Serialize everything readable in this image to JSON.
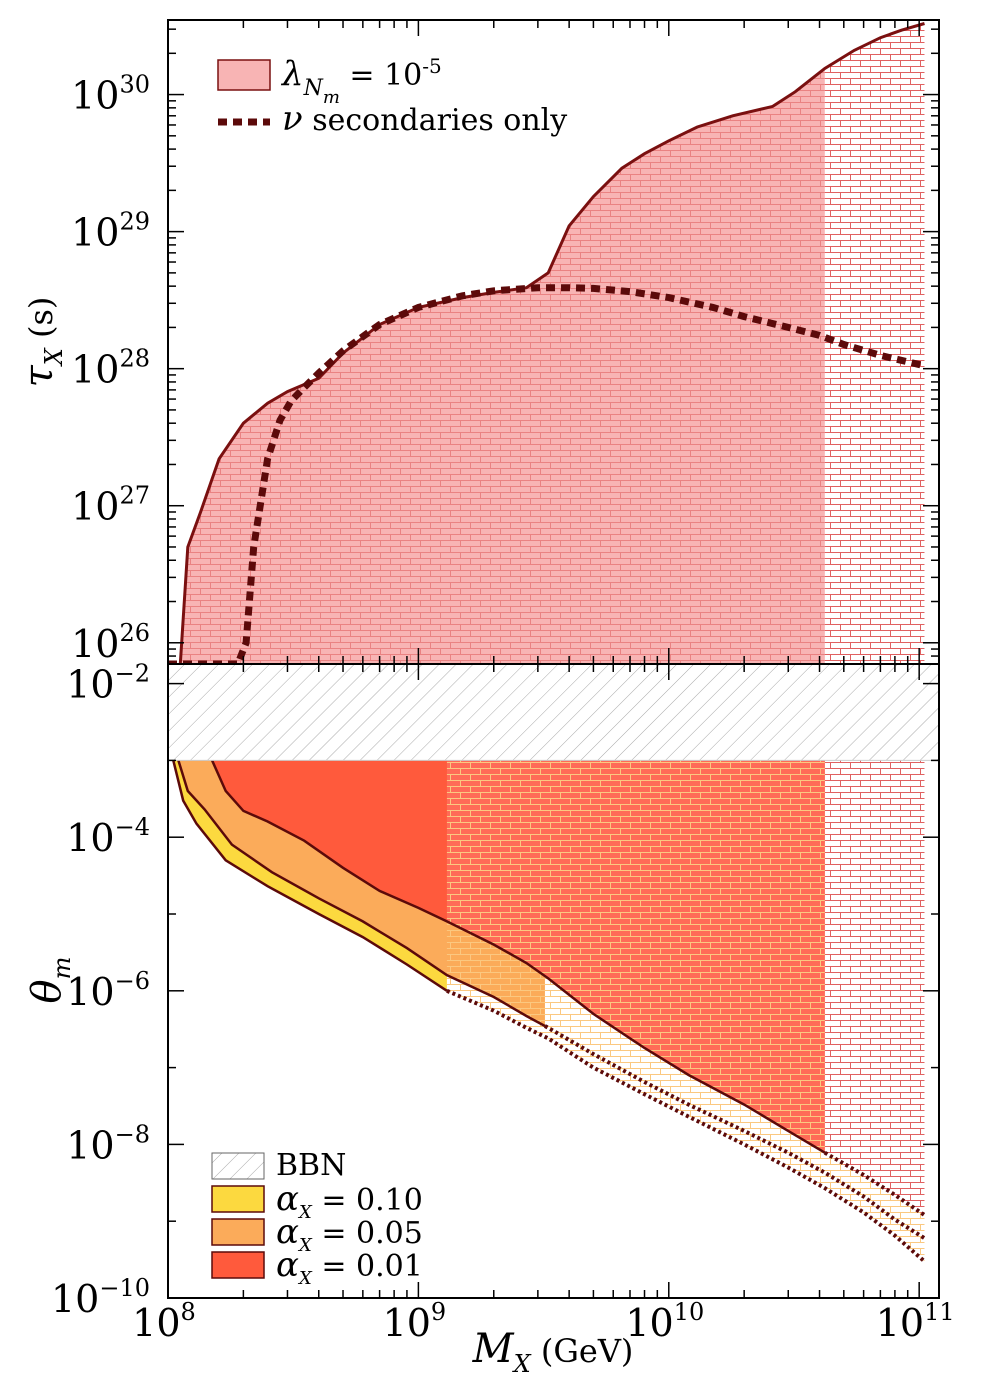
{
  "chart_data": [
    {
      "panel": "top",
      "type": "area",
      "xscale": "log",
      "yscale": "log",
      "xlim": [
        100000000.0,
        120000000000.0
      ],
      "ylim": [
        7e+25,
        3.5e+30
      ],
      "ylabel": {
        "symbol": "τ",
        "subscript": "X",
        "unit": "(s)"
      },
      "ytick_labels": [
        "10^26",
        "10^27",
        "10^28",
        "10^29",
        "10^30"
      ],
      "colors": {
        "region_fill": "#f8b4b4",
        "region_edge": "#7a1010",
        "dotted_line": "#5c0a0a",
        "hatch": "#e06060"
      },
      "hatched_extrapolation_from_x": 42000000000.0,
      "legend": [
        {
          "label_prefix": "λ",
          "label_sub": "N",
          "label_subsub": "m",
          "label_suffix": "= 10",
          "label_sup": "-5",
          "style": "filled-box"
        },
        {
          "label": "ν secondaries only",
          "style": "dotted-line"
        }
      ],
      "series": [
        {
          "name": "λ_Nm = 10^-5",
          "kind": "excluded-region-boundary",
          "x": [
            112000000.0,
            120000000.0,
            135000000.0,
            160000000.0,
            200000000.0,
            250000000.0,
            300000000.0,
            400000000.0,
            500000000.0,
            700000000.0,
            1000000000.0,
            1500000000.0,
            2000000000.0,
            2700000000.0,
            3300000000.0,
            4000000000.0,
            5000000000.0,
            6500000000.0,
            8000000000.0,
            10000000000.0,
            13000000000.0,
            18000000000.0,
            26000000000.0,
            32000000000.0,
            42000000000.0,
            55000000000.0,
            70000000000.0,
            85000000000.0,
            105000000000.0
          ],
          "y": [
            7e+25,
            5e+26,
            9e+26,
            2.2e+27,
            4e+27,
            5.6e+27,
            6.8e+27,
            8.5e+27,
            1.3e+28,
            2.1e+28,
            2.8e+28,
            3.3e+28,
            3.6e+28,
            3.9e+28,
            5e+28,
            1.1e+29,
            1.8e+29,
            2.9e+29,
            3.7e+29,
            4.6e+29,
            5.8e+29,
            7e+29,
            8.2e+29,
            1.05e+30,
            1.55e+30,
            2.1e+30,
            2.6e+30,
            2.95e+30,
            3.3e+30
          ]
        },
        {
          "name": "ν secondaries only",
          "kind": "dotted-line",
          "x": [
            100000000.0,
            150000000.0,
            190000000.0,
            205000000.0,
            220000000.0,
            250000000.0,
            280000000.0,
            310000000.0,
            350000000.0,
            400000000.0,
            500000000.0,
            700000000.0,
            1000000000.0,
            1500000000.0,
            2000000000.0,
            3000000000.0,
            4000000000.0,
            5000000000.0,
            7000000000.0,
            10000000000.0,
            15000000000.0,
            20000000000.0,
            30000000000.0,
            40000000000.0,
            50000000000.0,
            70000000000.0,
            105000000000.0
          ],
          "y": [
            7e+25,
            7e+25,
            7e+25,
            1e+26,
            5e+26,
            2.2e+27,
            4.2e+27,
            5.8e+27,
            7.3e+27,
            9.3e+27,
            1.35e+28,
            2.1e+28,
            2.8e+28,
            3.4e+28,
            3.7e+28,
            3.9e+28,
            3.9e+28,
            3.85e+28,
            3.65e+28,
            3.3e+28,
            2.8e+28,
            2.4e+28,
            2e+28,
            1.75e+28,
            1.5e+28,
            1.25e+28,
            1.05e+28
          ]
        }
      ]
    },
    {
      "panel": "bottom",
      "type": "area",
      "xscale": "log",
      "yscale": "log",
      "xlim": [
        100000000.0,
        120000000000.0
      ],
      "ylim": [
        1e-10,
        0.018
      ],
      "xlabel": {
        "symbol": "M",
        "subscript": "X",
        "unit": "(GeV)"
      },
      "ylabel": {
        "symbol": "θ",
        "subscript": "m"
      },
      "xtick_labels": [
        "10^8",
        "10^9",
        "10^10",
        "10^11"
      ],
      "ytick_labels": [
        "10^-10",
        "10^-8",
        "10^-6",
        "10^-4",
        "10^-2"
      ],
      "bbn_excluded_above": 0.001,
      "colors": {
        "bbn_hatch": "#aaaaaa",
        "alpha_0.10": "#fcd93f",
        "alpha_0.05": "#fbab5a",
        "alpha_0.01": "#ff5a3c",
        "alpha_0.01_light": "#ff6f5c",
        "edge": "#5c0a0a",
        "hatch_light": "#fbc880",
        "hatch_red": "#e06060"
      },
      "region_boundaries_x": [
        1300000000.0,
        3200000000.0,
        42000000000.0,
        105000000000.0
      ],
      "legend": [
        {
          "label": "BBN",
          "style": "hatched-box"
        },
        {
          "label_prefix": "α",
          "label_sub": "X",
          "label_suffix": "= 0.10",
          "style": "filled-box",
          "color": "#fcd93f"
        },
        {
          "label_prefix": "α",
          "label_sub": "X",
          "label_suffix": "= 0.05",
          "style": "filled-box",
          "color": "#fbab5a"
        },
        {
          "label_prefix": "α",
          "label_sub": "X",
          "label_suffix": "= 0.01",
          "style": "filled-box",
          "color": "#ff5a3c"
        }
      ],
      "series": [
        {
          "name": "α_X = 0.10",
          "x": [
            105000000.0,
            115000000.0,
            130000000.0,
            170000000.0,
            250000000.0,
            400000000.0,
            600000000.0,
            900000000.0,
            1300000000.0,
            2000000000.0,
            2700000000.0,
            3300000000.0,
            5000000000.0,
            8000000000.0,
            12000000000.0,
            20000000000.0,
            30000000000.0,
            42000000000.0,
            60000000000.0,
            80000000000.0,
            105000000000.0
          ],
          "y": [
            0.001,
            0.0003,
            0.00015,
            5e-05,
            2.3e-05,
            1e-05,
            5e-06,
            2.2e-06,
            1e-06,
            5.5e-07,
            3.3e-07,
            2.4e-07,
            1e-07,
            4.5e-08,
            2.3e-08,
            1e-08,
            5e-09,
            2.7e-09,
            1.3e-09,
            6.5e-10,
            3e-10
          ]
        },
        {
          "name": "α_X = 0.05",
          "x": [
            110000000.0,
            120000000.0,
            140000000.0,
            180000000.0,
            260000000.0,
            400000000.0,
            600000000.0,
            900000000.0,
            1300000000.0,
            2000000000.0,
            2700000000.0,
            3300000000.0,
            5000000000.0,
            8000000000.0,
            12000000000.0,
            20000000000.0,
            30000000000.0,
            42000000000.0,
            60000000000.0,
            80000000000.0,
            105000000000.0
          ],
          "y": [
            0.001,
            0.0004,
            0.00023,
            8e-05,
            3.5e-05,
            1.6e-05,
            8e-06,
            3.6e-06,
            1.6e-06,
            8.3e-07,
            4.7e-07,
            3.3e-07,
            1.5e-07,
            6.5e-08,
            3.3e-08,
            1.5e-08,
            7.8e-09,
            4.3e-09,
            2.1e-09,
            1.05e-09,
            6e-10
          ]
        },
        {
          "name": "α_X = 0.01",
          "x": [
            150000000.0,
            170000000.0,
            200000000.0,
            250000000.0,
            350000000.0,
            500000000.0,
            700000000.0,
            1000000000.0,
            1300000000.0,
            2000000000.0,
            2700000000.0,
            3300000000.0,
            5000000000.0,
            8000000000.0,
            12000000000.0,
            20000000000.0,
            30000000000.0,
            42000000000.0,
            60000000000.0,
            80000000000.0,
            105000000000.0
          ],
          "y": [
            0.001,
            0.0004,
            0.00022,
            0.00016,
            9e-05,
            4e-05,
            2e-05,
            1.2e-05,
            8e-06,
            4e-06,
            2.3e-06,
            1.45e-06,
            5e-07,
            1.8e-07,
            8e-08,
            3.3e-08,
            1.5e-08,
            7.8e-09,
            4e-09,
            2.2e-09,
            1.2e-09
          ]
        }
      ]
    }
  ]
}
